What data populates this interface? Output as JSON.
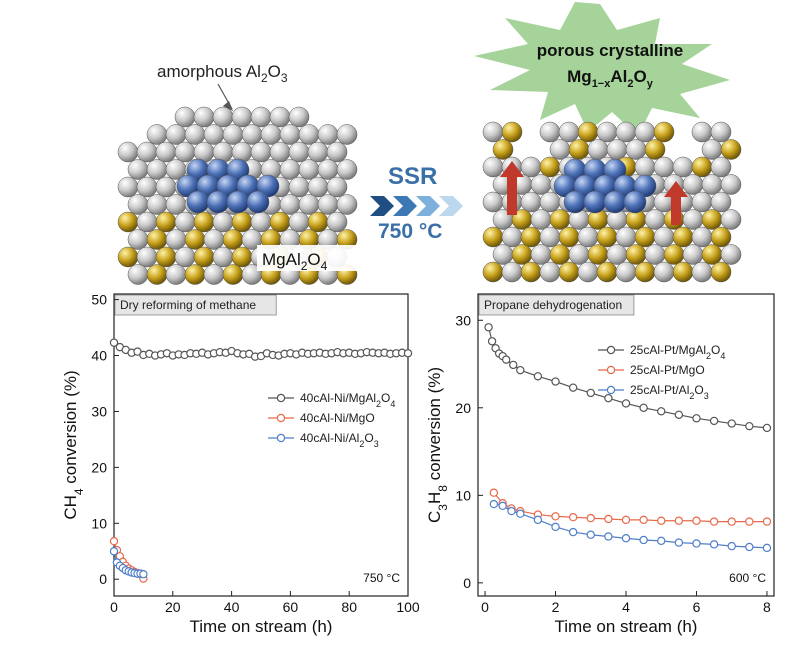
{
  "schematic": {
    "amorphous_label": "amorphous Al",
    "amorphous_sub": "2",
    "amorphous_tail": "O",
    "amorphous_sub2": "3",
    "spinel_label": "MgAl",
    "spinel_sub": "2",
    "spinel_tail": "O",
    "spinel_sub2": "4",
    "burst_line1": "porous crystalline",
    "burst_line2_a": "Mg",
    "burst_line2_sub1": "1−x",
    "burst_line2_b": "Al",
    "burst_line2_sub2": "2",
    "burst_line2_c": "O",
    "burst_line2_sub3": "y",
    "process_label": "SSR",
    "process_temp": "750 °C",
    "colors": {
      "alumina": "#c9c9c9",
      "magnesium": "#c8a21c",
      "active_metal": "#4e72b8",
      "arrow": "#c0392b",
      "burst": "#a6d39a",
      "process_text": "#3a6fa8"
    }
  },
  "chart_data": [
    {
      "type": "scatter",
      "title": "Dry reforming of methane",
      "xlabel": "Time on stream (h)",
      "ylabel_parts": [
        "CH",
        "4",
        " conversion (%)"
      ],
      "xlim": [
        0,
        100
      ],
      "ylim": [
        -3,
        51
      ],
      "xticks": [
        0,
        20,
        40,
        60,
        80,
        100
      ],
      "yticks": [
        0,
        10,
        20,
        30,
        40,
        50
      ],
      "annotation": "750 °C",
      "series": [
        {
          "name_parts": [
            "40cAl-Ni/MgAl",
            "2",
            "O",
            "4",
            ""
          ],
          "color": "#555555",
          "x": [
            0,
            2,
            4,
            6,
            8,
            10,
            12,
            14,
            16,
            18,
            20,
            22,
            24,
            26,
            28,
            30,
            32,
            34,
            36,
            38,
            40,
            42,
            44,
            46,
            48,
            50,
            52,
            54,
            56,
            58,
            60,
            62,
            64,
            66,
            68,
            70,
            72,
            74,
            76,
            78,
            80,
            82,
            84,
            86,
            88,
            90,
            92,
            94,
            96,
            98,
            100
          ],
          "y": [
            42.3,
            41.5,
            41.0,
            40.5,
            40.7,
            40.1,
            40.3,
            40.0,
            40.2,
            40.4,
            40.0,
            40.2,
            40.1,
            40.4,
            40.3,
            40.5,
            40.2,
            40.4,
            40.6,
            40.5,
            40.8,
            40.4,
            40.2,
            40.3,
            39.8,
            39.9,
            40.4,
            40.1,
            40.0,
            40.3,
            40.4,
            40.2,
            40.5,
            40.3,
            40.4,
            40.5,
            40.3,
            40.4,
            40.6,
            40.4,
            40.5,
            40.3,
            40.4,
            40.6,
            40.5,
            40.4,
            40.5,
            40.3,
            40.4,
            40.5,
            40.4
          ]
        },
        {
          "name_parts": [
            "40cAl-Ni/MgO",
            "",
            "",
            "",
            ""
          ],
          "color": "#e8694a",
          "x": [
            0,
            1,
            2,
            3,
            4,
            5,
            6,
            7,
            8,
            9,
            10
          ],
          "y": [
            6.8,
            5.2,
            4.1,
            3.1,
            2.4,
            1.9,
            1.6,
            1.3,
            1.1,
            0.9,
            0.1
          ]
        },
        {
          "name_parts": [
            "40cAl-Ni/Al",
            "2",
            "O",
            "3",
            ""
          ],
          "color": "#4f7fc9",
          "x": [
            0,
            1,
            2,
            3,
            4,
            5,
            6,
            7,
            8,
            9,
            10
          ],
          "y": [
            5.0,
            3.0,
            2.4,
            2.0,
            1.6,
            1.4,
            1.2,
            1.1,
            1.0,
            1.0,
            0.9
          ]
        }
      ]
    },
    {
      "type": "line",
      "title": "Propane dehydrogenation",
      "xlabel": "Time on stream (h)",
      "ylabel_parts": [
        "C",
        "3",
        "H",
        "8",
        " conversion (%)"
      ],
      "xlim": [
        -0.2,
        8.2
      ],
      "ylim": [
        -1.5,
        33
      ],
      "xticks": [
        0,
        2,
        4,
        6,
        8
      ],
      "yticks": [
        0,
        10,
        20,
        30
      ],
      "annotation": "600 °C",
      "series": [
        {
          "name_parts": [
            "25cAl-Pt/MgAl",
            "2",
            "O",
            "4",
            ""
          ],
          "color": "#555555",
          "x": [
            0.1,
            0.2,
            0.3,
            0.4,
            0.5,
            0.6,
            0.8,
            1.0,
            1.5,
            2.0,
            2.5,
            3.0,
            3.5,
            4.0,
            4.5,
            5.0,
            5.5,
            6.0,
            6.5,
            7.0,
            7.5,
            8.0
          ],
          "y": [
            29.2,
            27.6,
            26.8,
            26.2,
            25.9,
            25.5,
            24.9,
            24.3,
            23.6,
            23.0,
            22.3,
            21.7,
            21.1,
            20.5,
            20.0,
            19.6,
            19.2,
            18.8,
            18.5,
            18.2,
            17.9,
            17.7
          ]
        },
        {
          "name_parts": [
            "25cAl-Pt/MgO",
            "",
            "",
            "",
            ""
          ],
          "color": "#e8694a",
          "x": [
            0.25,
            0.5,
            0.75,
            1.0,
            1.5,
            2.0,
            2.5,
            3.0,
            3.5,
            4.0,
            4.5,
            5.0,
            5.5,
            6.0,
            6.5,
            7.0,
            7.5,
            8.0
          ],
          "y": [
            10.3,
            9.1,
            8.5,
            8.2,
            7.8,
            7.6,
            7.5,
            7.4,
            7.3,
            7.2,
            7.2,
            7.1,
            7.1,
            7.1,
            7.0,
            7.0,
            7.0,
            7.0
          ]
        },
        {
          "name_parts": [
            "25cAl-Pt/Al",
            "2",
            "O",
            "3",
            ""
          ],
          "color": "#4f7fc9",
          "x": [
            0.25,
            0.5,
            0.75,
            1.0,
            1.5,
            2.0,
            2.5,
            3.0,
            3.5,
            4.0,
            4.5,
            5.0,
            5.5,
            6.0,
            6.5,
            7.0,
            7.5,
            8.0
          ],
          "y": [
            9.0,
            8.8,
            8.2,
            7.9,
            7.2,
            6.4,
            5.8,
            5.5,
            5.3,
            5.1,
            4.9,
            4.8,
            4.6,
            4.5,
            4.4,
            4.2,
            4.1,
            4.0
          ]
        }
      ]
    }
  ]
}
